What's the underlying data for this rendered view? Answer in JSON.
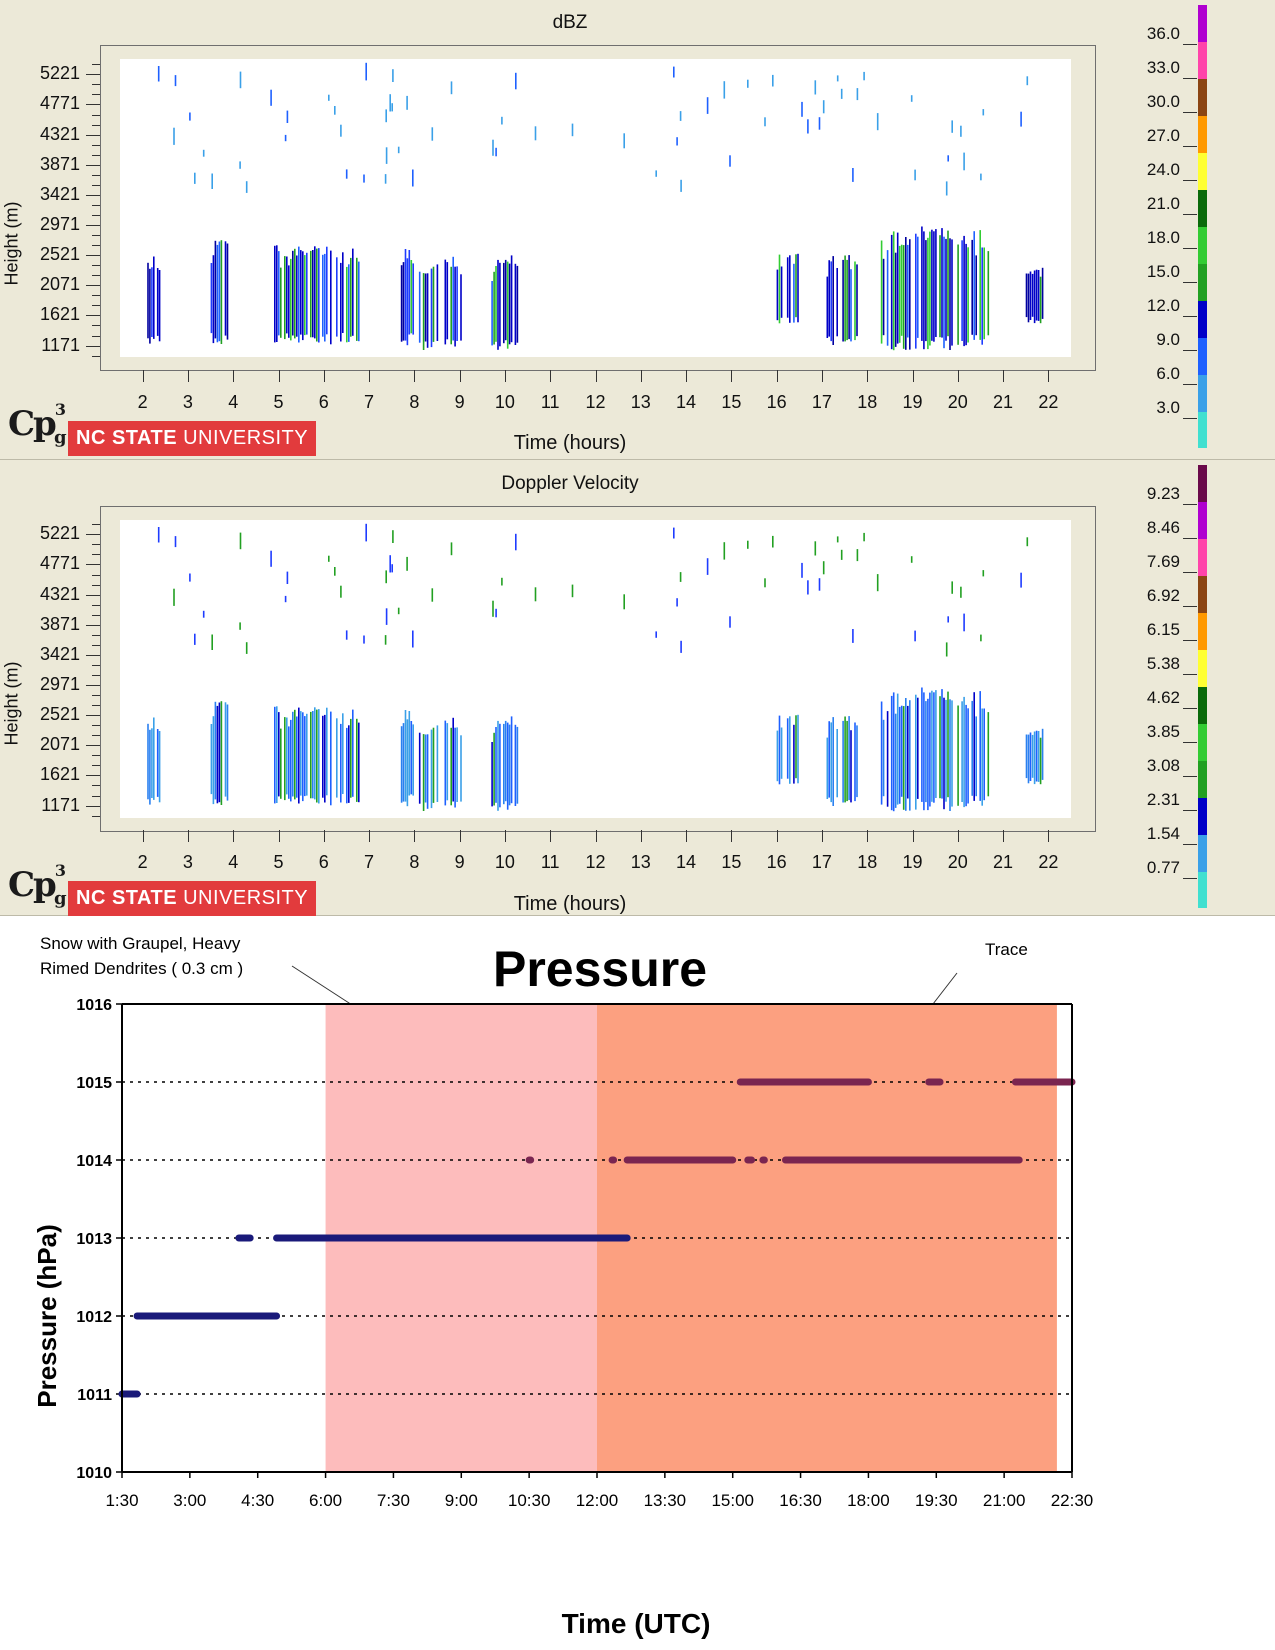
{
  "top_panel": {
    "title": "dBZ",
    "ylabel": "Height (m)",
    "xlabel": "Time (hours)",
    "logo_cp": "Cp",
    "logo_cp_sup": "3",
    "logo_cp_sub": "g",
    "logo_ncsu_bold": "NC STATE",
    "logo_ncsu_rest": " UNIVERSITY"
  },
  "mid_panel": {
    "title": "Doppler Velocity",
    "ylabel": "Height (m)",
    "xlabel": "Time (hours)",
    "logo_cp": "Cp",
    "logo_cp_sup": "3",
    "logo_cp_sub": "g",
    "logo_ncsu_bold": "NC STATE",
    "logo_ncsu_rest": " UNIVERSITY"
  },
  "pressure_panel": {
    "title": "Pressure",
    "ylabel": "Pressure (hPa)",
    "xlabel": "Time (UTC)",
    "annotation_left_line1": "Snow with Graupel, Heavy",
    "annotation_left_line2": "Rimed Dendrites  ( 0.3 cm )",
    "annotation_right": "Trace"
  },
  "chart_data": [
    {
      "type": "heatmap",
      "title": "dBZ",
      "xlabel": "Time (hours)",
      "ylabel": "Height (m)",
      "x_ticks": [
        "2",
        "3",
        "4",
        "5",
        "6",
        "7",
        "8",
        "9",
        "10",
        "11",
        "12",
        "13",
        "14",
        "15",
        "16",
        "17",
        "18",
        "19",
        "20",
        "21",
        "22"
      ],
      "y_ticks": [
        "5221",
        "4771",
        "4321",
        "3871",
        "3421",
        "2971",
        "2521",
        "2071",
        "1621",
        "1171"
      ],
      "xlim": [
        1.5,
        22.5
      ],
      "ylim": [
        1000,
        5450
      ],
      "colorbar_ticks": [
        "36.0",
        "33.0",
        "30.0",
        "27.0",
        "24.0",
        "21.0",
        "18.0",
        "15.0",
        "12.0",
        "9.0",
        "6.0",
        "3.0"
      ],
      "colorbar_colors": [
        "#40e0d0",
        "#3aa0e8",
        "#1e60ff",
        "#0000c8",
        "#22a022",
        "#33cc33",
        "#0a6a0a",
        "#ffff33",
        "#ff9900",
        "#8b4513",
        "#ff44aa",
        "#b000d0"
      ],
      "echo_regions": [
        {
          "t0": 2.1,
          "t1": 2.4,
          "h0": 1171,
          "h1": 2600
        },
        {
          "t0": 3.5,
          "t1": 3.9,
          "h0": 1171,
          "h1": 2950
        },
        {
          "t0": 4.9,
          "t1": 6.8,
          "h0": 1171,
          "h1": 2750
        },
        {
          "t0": 7.7,
          "t1": 8.0,
          "h0": 1171,
          "h1": 2700
        },
        {
          "t0": 8.1,
          "t1": 9.1,
          "h0": 1100,
          "h1": 2600
        },
        {
          "t0": 9.7,
          "t1": 10.3,
          "h0": 1100,
          "h1": 2600
        },
        {
          "t0": 16.0,
          "t1": 16.5,
          "h0": 1500,
          "h1": 2600
        },
        {
          "t0": 17.1,
          "t1": 17.8,
          "h0": 1171,
          "h1": 2600
        },
        {
          "t0": 18.3,
          "t1": 20.7,
          "h0": 1100,
          "h1": 3050
        },
        {
          "t0": 21.5,
          "t1": 21.9,
          "h0": 1500,
          "h1": 2400
        }
      ]
    },
    {
      "type": "heatmap",
      "title": "Doppler Velocity",
      "xlabel": "Time (hours)",
      "ylabel": "Height (m)",
      "x_ticks": [
        "2",
        "3",
        "4",
        "5",
        "6",
        "7",
        "8",
        "9",
        "10",
        "11",
        "12",
        "13",
        "14",
        "15",
        "16",
        "17",
        "18",
        "19",
        "20",
        "21",
        "22"
      ],
      "y_ticks": [
        "5221",
        "4771",
        "4321",
        "3871",
        "3421",
        "2971",
        "2521",
        "2071",
        "1621",
        "1171"
      ],
      "xlim": [
        1.5,
        22.5
      ],
      "ylim": [
        1000,
        5450
      ],
      "colorbar_ticks": [
        "9.23",
        "8.46",
        "7.69",
        "6.92",
        "6.15",
        "5.38",
        "4.62",
        "3.85",
        "3.08",
        "2.31",
        "1.54",
        "0.77"
      ],
      "colorbar_colors": [
        "#40e0d0",
        "#3aa0e8",
        "#0000c8",
        "#22a022",
        "#33cc33",
        "#0a6a0a",
        "#ffff33",
        "#ff9900",
        "#8b4513",
        "#ff44aa",
        "#b000d0",
        "#6a0a4a"
      ],
      "echo_regions": [
        {
          "t0": 2.1,
          "t1": 2.4,
          "h0": 1171,
          "h1": 2600
        },
        {
          "t0": 3.5,
          "t1": 3.9,
          "h0": 1171,
          "h1": 2950
        },
        {
          "t0": 4.9,
          "t1": 6.8,
          "h0": 1171,
          "h1": 2750
        },
        {
          "t0": 7.7,
          "t1": 8.0,
          "h0": 1171,
          "h1": 2700
        },
        {
          "t0": 8.1,
          "t1": 9.1,
          "h0": 1100,
          "h1": 2600
        },
        {
          "t0": 9.7,
          "t1": 10.3,
          "h0": 1100,
          "h1": 2600
        },
        {
          "t0": 16.0,
          "t1": 16.5,
          "h0": 1500,
          "h1": 2600
        },
        {
          "t0": 17.1,
          "t1": 17.8,
          "h0": 1171,
          "h1": 2600
        },
        {
          "t0": 18.3,
          "t1": 20.7,
          "h0": 1100,
          "h1": 3050
        },
        {
          "t0": 21.5,
          "t1": 21.9,
          "h0": 1500,
          "h1": 2400
        }
      ]
    },
    {
      "type": "scatter",
      "title": "Pressure",
      "xlabel": "Time (UTC)",
      "ylabel": "Pressure (hPa)",
      "x_ticks": [
        "1:30",
        "3:00",
        "4:30",
        "6:00",
        "7:30",
        "9:00",
        "10:30",
        "12:00",
        "13:30",
        "15:00",
        "16:30",
        "18:00",
        "19:30",
        "21:00",
        "22:30"
      ],
      "y_ticks": [
        "1016",
        "1015",
        "1014",
        "1013",
        "1012",
        "1011",
        "1010"
      ],
      "xlim": [
        "1:30",
        "22:30"
      ],
      "ylim": [
        1010,
        1016
      ],
      "grid": "dotted horizontal at each integer hPa",
      "shaded_periods": [
        {
          "start": "6:00",
          "end": "12:00",
          "color": "#fdbcbc",
          "label": "Snow with Graupel, Heavy Rimed Dendrites  ( 0.3 cm )"
        },
        {
          "start": "12:00",
          "end": "22:10",
          "color": "#fca080",
          "label": "Trace"
        }
      ],
      "series": [
        {
          "color_early": "#1a1a7a",
          "color_late": "#7a2550",
          "segments": [
            {
              "p": 1011,
              "start": "1:30",
              "end": "1:50"
            },
            {
              "p": 1012,
              "start": "1:50",
              "end": "4:55"
            },
            {
              "p": 1013,
              "start": "4:05",
              "end": "4:20"
            },
            {
              "p": 1013,
              "start": "4:55",
              "end": "12:40"
            },
            {
              "p": 1014,
              "start": "10:30",
              "end": "10:32"
            },
            {
              "p": 1014,
              "start": "12:20",
              "end": "12:22"
            },
            {
              "p": 1014,
              "start": "12:40",
              "end": "15:00"
            },
            {
              "p": 1014,
              "start": "15:20",
              "end": "15:25"
            },
            {
              "p": 1014,
              "start": "15:40",
              "end": "15:42"
            },
            {
              "p": 1014,
              "start": "16:10",
              "end": "21:20"
            },
            {
              "p": 1015,
              "start": "15:10",
              "end": "18:00"
            },
            {
              "p": 1015,
              "start": "19:20",
              "end": "19:35"
            },
            {
              "p": 1015,
              "start": "21:15",
              "end": "22:30"
            }
          ]
        }
      ]
    }
  ]
}
